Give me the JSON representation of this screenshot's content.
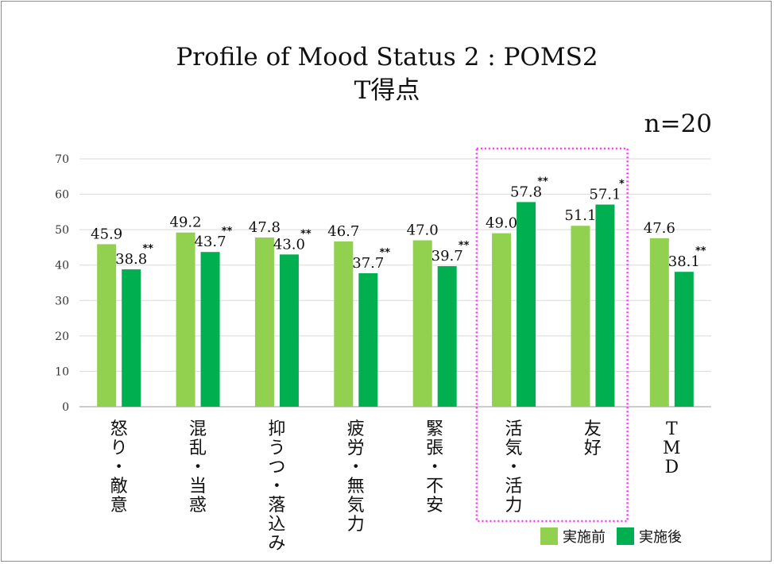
{
  "chart_data": {
    "type": "bar",
    "title": "Profile of Mood Status 2 : POMS2",
    "subtitle": "T得点",
    "annotation": "n=20",
    "categories": [
      "怒り・敵意",
      "混乱・当惑",
      "抑うつ・落込み",
      "疲労・無気力",
      "緊張・不安",
      "活気・活力",
      "友好",
      "TMD"
    ],
    "series": [
      {
        "name": "実施前",
        "color": "#92d050",
        "values": [
          45.9,
          49.2,
          47.8,
          46.7,
          47.0,
          49.0,
          51.1,
          47.6
        ]
      },
      {
        "name": "実施後",
        "color": "#00b050",
        "values": [
          38.8,
          43.7,
          43.0,
          37.7,
          39.7,
          57.8,
          57.1,
          38.1
        ]
      }
    ],
    "value_labels": {
      "before": [
        "45.9",
        "49.2",
        "47.8",
        "46.7",
        "47.0",
        "49.0",
        "51.1",
        "47.6"
      ],
      "after": [
        "38.8",
        "43.7",
        "43.0",
        "37.7",
        "39.7",
        "57.8",
        "57.1",
        "38.1"
      ]
    },
    "significance": [
      "**",
      "**",
      "**",
      "**",
      "**",
      "**",
      "*",
      "**"
    ],
    "ylim": [
      0,
      70
    ],
    "yticks": [
      "0",
      "10",
      "20",
      "30",
      "40",
      "50",
      "60",
      "70"
    ],
    "grid": true,
    "legend_position": "bottom-right",
    "highlight_categories": [
      "活気・活力",
      "友好"
    ],
    "highlight_color": "#ff33ff",
    "xlabel": "",
    "ylabel": ""
  }
}
